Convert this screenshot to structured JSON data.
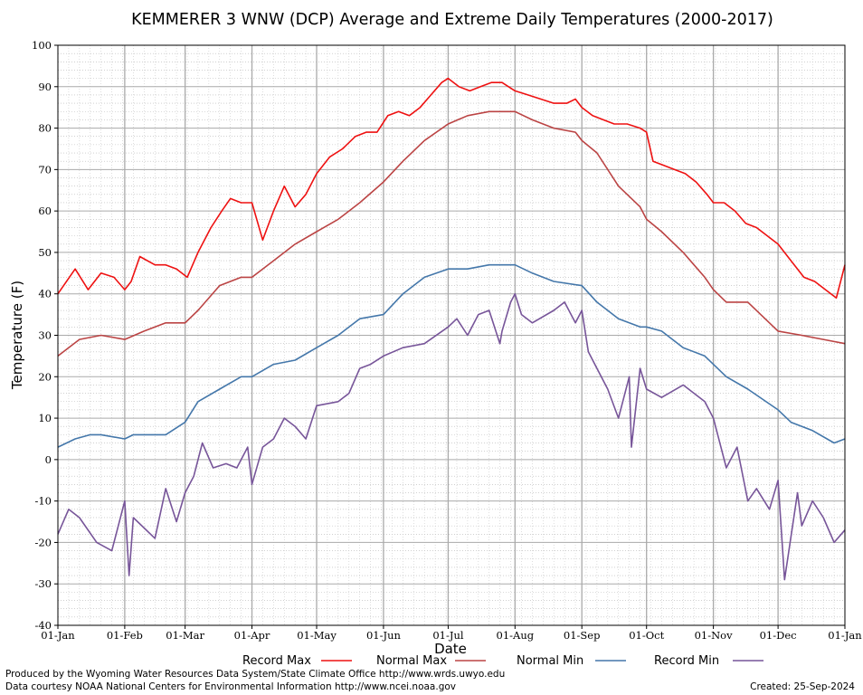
{
  "chart_data": {
    "type": "line",
    "title": "KEMMERER 3 WNW (DCP) Average and Extreme Daily Temperatures (2000-2017)",
    "xlabel": "Date",
    "ylabel": "Temperature (F)",
    "ylim": [
      -40,
      100
    ],
    "yticks": [
      -40,
      -30,
      -20,
      -10,
      0,
      10,
      20,
      30,
      40,
      50,
      60,
      70,
      80,
      90,
      100
    ],
    "xlim": [
      0,
      365
    ],
    "xticks": [
      {
        "day": 0,
        "label": "01-Jan"
      },
      {
        "day": 31,
        "label": "01-Feb"
      },
      {
        "day": 59,
        "label": "01-Mar"
      },
      {
        "day": 90,
        "label": "01-Apr"
      },
      {
        "day": 120,
        "label": "01-May"
      },
      {
        "day": 151,
        "label": "01-Jun"
      },
      {
        "day": 181,
        "label": "01-Jul"
      },
      {
        "day": 212,
        "label": "01-Aug"
      },
      {
        "day": 243,
        "label": "01-Sep"
      },
      {
        "day": 273,
        "label": "01-Oct"
      },
      {
        "day": 304,
        "label": "01-Nov"
      },
      {
        "day": 334,
        "label": "01-Dec"
      },
      {
        "day": 365,
        "label": "01-Jan"
      }
    ],
    "grid": true,
    "legend_position": "bottom",
    "series": [
      {
        "name": "Record Max",
        "color": "#ee1111",
        "x": [
          0,
          8,
          14,
          20,
          26,
          31,
          34,
          38,
          45,
          50,
          55,
          60,
          65,
          71,
          76,
          80,
          85,
          90,
          95,
          100,
          105,
          110,
          115,
          120,
          126,
          132,
          138,
          143,
          148,
          153,
          158,
          163,
          168,
          173,
          178,
          181,
          186,
          191,
          196,
          201,
          206,
          212,
          218,
          224,
          230,
          236,
          240,
          243,
          248,
          253,
          258,
          264,
          270,
          273,
          276,
          281,
          286,
          291,
          296,
          301,
          304,
          309,
          314,
          319,
          324,
          329,
          334,
          340,
          346,
          351,
          356,
          361,
          365
        ],
        "y": [
          40,
          46,
          41,
          45,
          44,
          41,
          43,
          49,
          47,
          47,
          46,
          44,
          50,
          56,
          60,
          63,
          62,
          62,
          53,
          60,
          66,
          61,
          64,
          69,
          73,
          75,
          78,
          79,
          79,
          83,
          84,
          83,
          85,
          88,
          91,
          92,
          90,
          89,
          90,
          91,
          91,
          89,
          88,
          87,
          86,
          86,
          87,
          85,
          83,
          82,
          81,
          81,
          80,
          79,
          72,
          71,
          70,
          69,
          67,
          64,
          62,
          62,
          60,
          57,
          56,
          54,
          52,
          48,
          44,
          43,
          41,
          39,
          47
        ]
      },
      {
        "name": "Normal Max",
        "color": "#bb4444",
        "x": [
          0,
          10,
          20,
          31,
          40,
          50,
          59,
          65,
          75,
          85,
          90,
          100,
          110,
          120,
          130,
          140,
          151,
          160,
          170,
          181,
          190,
          200,
          210,
          212,
          220,
          230,
          240,
          243,
          250,
          260,
          270,
          273,
          280,
          290,
          300,
          304,
          310,
          320,
          334,
          345,
          355,
          365
        ],
        "y": [
          25,
          29,
          30,
          29,
          31,
          33,
          33,
          36,
          42,
          44,
          44,
          48,
          52,
          55,
          58,
          62,
          67,
          72,
          77,
          81,
          83,
          84,
          84,
          84,
          82,
          80,
          79,
          77,
          74,
          66,
          61,
          58,
          55,
          50,
          44,
          41,
          38,
          38,
          31,
          30,
          29,
          28
        ]
      },
      {
        "name": "Normal Min",
        "color": "#4477aa",
        "x": [
          0,
          8,
          15,
          20,
          31,
          35,
          45,
          50,
          59,
          65,
          75,
          85,
          90,
          100,
          110,
          120,
          130,
          140,
          151,
          160,
          170,
          181,
          190,
          200,
          212,
          220,
          230,
          243,
          250,
          260,
          270,
          273,
          280,
          290,
          300,
          304,
          310,
          320,
          334,
          340,
          350,
          360,
          365
        ],
        "y": [
          3,
          5,
          6,
          6,
          5,
          6,
          6,
          6,
          9,
          14,
          17,
          20,
          20,
          23,
          24,
          27,
          30,
          34,
          35,
          40,
          44,
          46,
          46,
          47,
          47,
          45,
          43,
          42,
          38,
          34,
          32,
          32,
          31,
          27,
          25,
          23,
          20,
          17,
          12,
          9,
          7,
          4,
          5
        ]
      },
      {
        "name": "Record Min",
        "color": "#775599",
        "x": [
          0,
          5,
          10,
          18,
          25,
          31,
          33,
          35,
          45,
          50,
          55,
          59,
          63,
          67,
          72,
          78,
          83,
          88,
          90,
          95,
          100,
          105,
          110,
          115,
          120,
          130,
          135,
          140,
          145,
          151,
          160,
          170,
          181,
          185,
          190,
          195,
          200,
          205,
          206,
          210,
          212,
          215,
          220,
          230,
          235,
          240,
          243,
          246,
          250,
          255,
          260,
          265,
          266,
          270,
          273,
          280,
          290,
          300,
          304,
          306,
          310,
          315,
          320,
          324,
          330,
          334,
          337,
          343,
          345,
          350,
          355,
          360,
          365
        ],
        "y": [
          -18,
          -12,
          -14,
          -20,
          -22,
          -10,
          -28,
          -14,
          -19,
          -7,
          -15,
          -8,
          -4,
          4,
          -2,
          -1,
          -2,
          3,
          -6,
          3,
          5,
          10,
          8,
          5,
          13,
          14,
          16,
          22,
          23,
          25,
          27,
          28,
          32,
          34,
          30,
          35,
          36,
          28,
          31,
          38,
          40,
          35,
          33,
          36,
          38,
          33,
          36,
          26,
          22,
          17,
          10,
          20,
          3,
          22,
          17,
          15,
          18,
          14,
          10,
          6,
          -2,
          3,
          -10,
          -7,
          -12,
          -5,
          -29,
          -8,
          -16,
          -10,
          -14,
          -20,
          -17
        ]
      }
    ]
  },
  "legend": {
    "items": [
      {
        "label": "Record Max",
        "color": "#ee1111"
      },
      {
        "label": "Normal Max",
        "color": "#bb4444"
      },
      {
        "label": "Normal Min",
        "color": "#4477aa"
      },
      {
        "label": "Record Min",
        "color": "#775599"
      }
    ]
  },
  "footer": {
    "produced_by": "Produced by the Wyoming Water Resources Data System/State Climate Office http://www.wrds.uwyo.edu",
    "data_courtesy": "Data courtesy NOAA National Centers for Environmental Information http://www.ncei.noaa.gov",
    "created": "Created:  25-Sep-2024"
  }
}
